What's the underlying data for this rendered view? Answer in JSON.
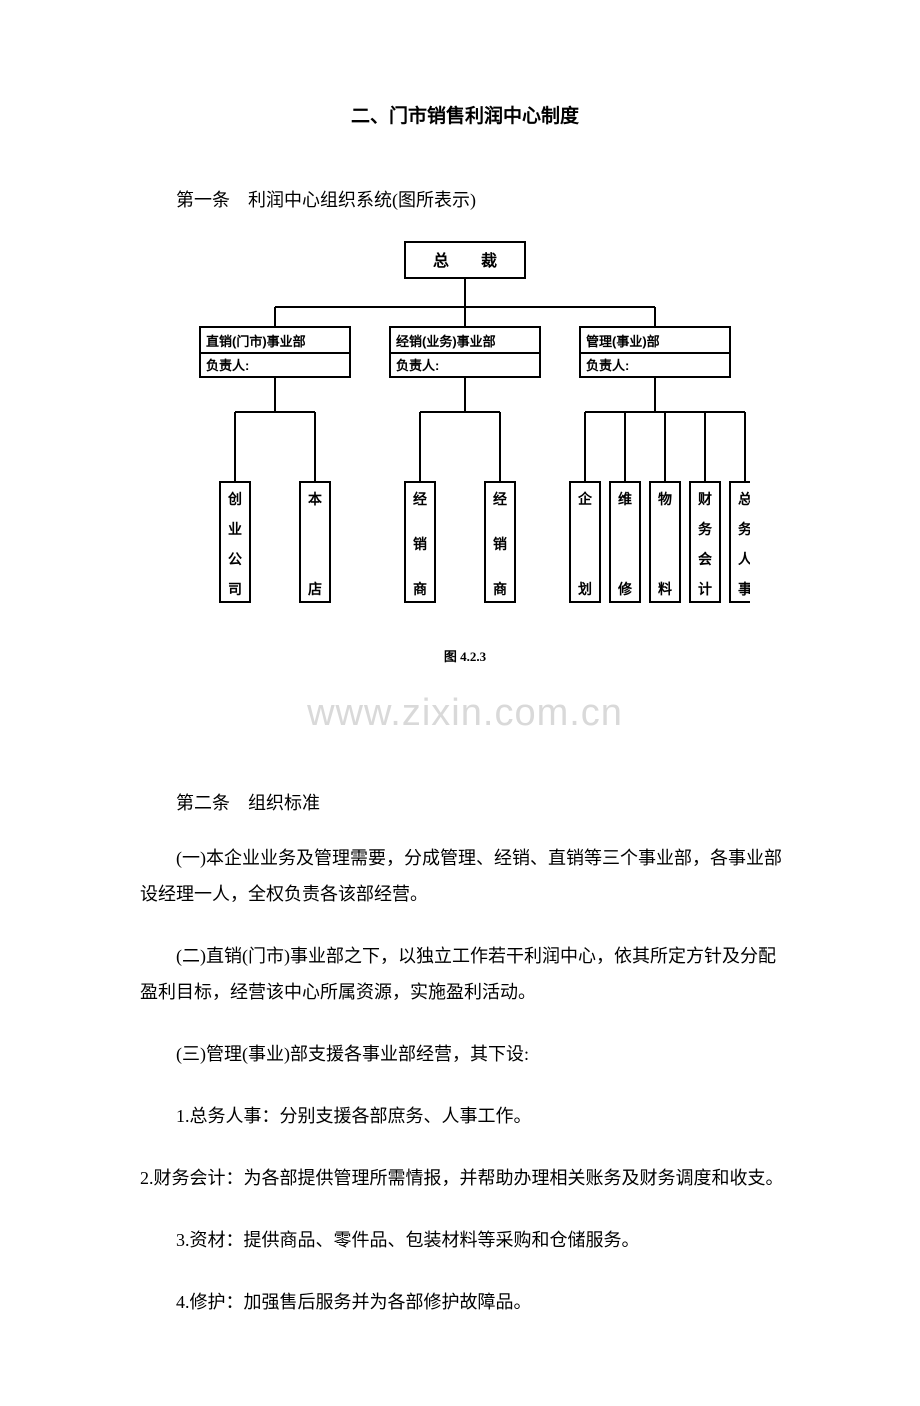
{
  "title": "二、门市销售利润中心制度",
  "article1_header": "第一条　利润中心组织系统(图所表示)",
  "diagram": {
    "root": "总　　裁",
    "mid": [
      {
        "title": "直销(门市)事业部",
        "sub": "负责人:"
      },
      {
        "title": "经销(业务)事业部",
        "sub": "负责人:"
      },
      {
        "title": "管理(事业)部",
        "sub": "负责人:"
      }
    ],
    "leaves_left": [
      [
        "创",
        "业",
        "公",
        "司"
      ],
      [
        "本",
        "",
        "",
        "店"
      ]
    ],
    "leaves_mid": [
      [
        "经",
        "销",
        "商"
      ],
      [
        "经",
        "销",
        "商"
      ]
    ],
    "leaves_right": [
      [
        "企",
        "",
        "划"
      ],
      [
        "维",
        "",
        "修"
      ],
      [
        "物",
        "",
        "料"
      ],
      [
        "财",
        "务",
        "会",
        "计"
      ],
      [
        "总",
        "务",
        "人",
        "事"
      ]
    ],
    "caption": "图 4.2.3",
    "border_color": "#000000",
    "border_width": 2,
    "text_color": "#000000",
    "fontsize_box": 14,
    "fontsize_leaf": 14
  },
  "watermark": "www.zixin.com.cn",
  "article2_header": "第二条　组织标准",
  "p1": "(一)本企业业务及管理需要，分成管理、经销、直销等三个事业部，各事业部设经理一人，全权负责各该部经营。",
  "p2": "(二)直销(门市)事业部之下，以独立工作若干利润中心，依其所定方针及分配盈利目标，经营该中心所属资源，实施盈利活动。",
  "p3": "(三)管理(事业)部支援各事业部经营，其下设:",
  "p4": "1.总务人事：分别支援各部庶务、人事工作。",
  "p5": "2.财务会计：为各部提供管理所需情报，并帮助办理相关账务及财务调度和收支。",
  "p6": "3.资材：提供商品、零件品、包装材料等采购和仓储服务。",
  "p7": "4.修护：加强售后服务并为各部修护故障品。"
}
